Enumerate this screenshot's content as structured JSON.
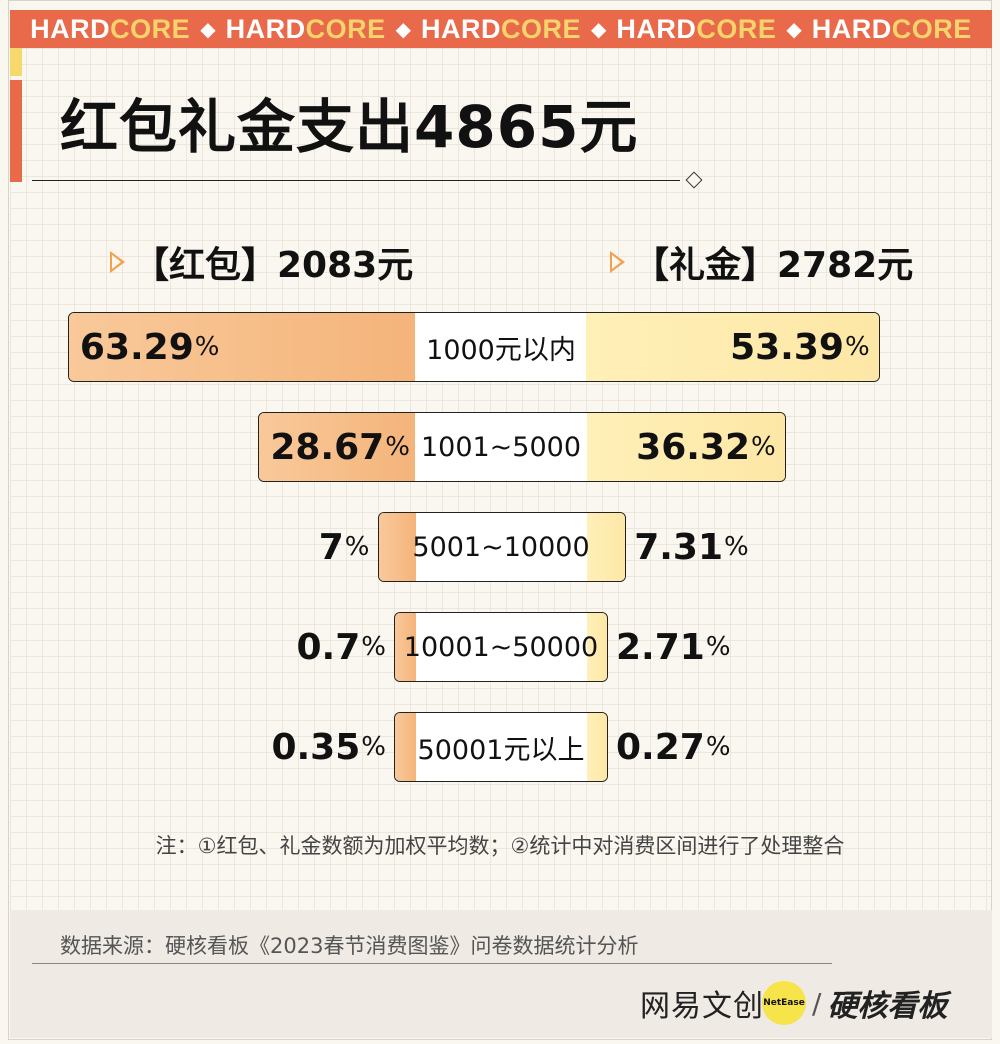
{
  "banner": {
    "word_a": "HARD",
    "word_b": "CORE",
    "repeat": 5
  },
  "title": "红包礼金支出4865元",
  "headers": {
    "left": "【红包】2083元",
    "right": "【礼金】2782元"
  },
  "unit_suffix": "%",
  "chart_data": {
    "type": "bar",
    "title": "红包礼金支出4865元",
    "categories": [
      "1000元以内",
      "1001~5000",
      "5001~10000",
      "10001~50000",
      "50001元以上"
    ],
    "series": [
      {
        "name": "【红包】2083元",
        "values": [
          63.29,
          28.67,
          7,
          0.7,
          0.35
        ],
        "labels": [
          "63.29",
          "28.67",
          "7",
          "0.7",
          "0.35"
        ]
      },
      {
        "name": "【礼金】2782元",
        "values": [
          53.39,
          36.32,
          7.31,
          2.71,
          0.27
        ],
        "labels": [
          "53.39",
          "36.32",
          "7.31",
          "2.71",
          "0.27"
        ]
      }
    ],
    "colors": {
      "left": "#f4b47a",
      "right": "#fde7a6"
    }
  },
  "note": "注：①红包、礼金数额为加权平均数；②统计中对消费区间进行了处理整合",
  "source": "数据来源：硬核看板《2023春节消费图鉴》问卷数据统计分析",
  "brand": {
    "netease": "网易文创",
    "dot_text": "NetEase",
    "slash": "/",
    "hardcore": "硬核看板"
  }
}
